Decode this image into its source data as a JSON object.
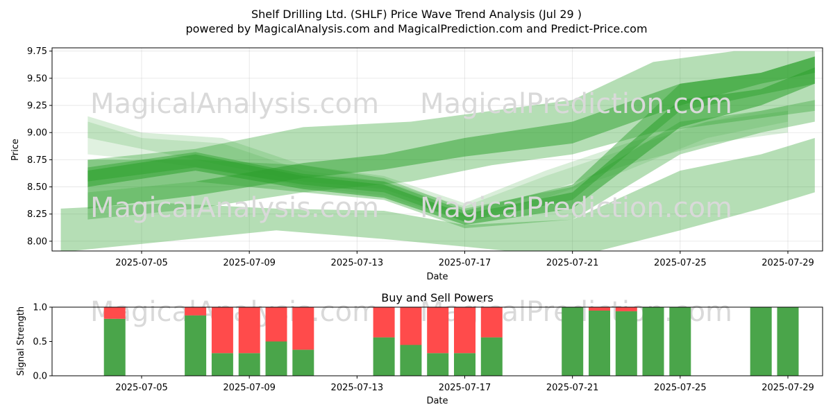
{
  "title_line1": "Shelf Drilling Ltd. (SHLF) Price Wave Trend Analysis (Jul 29 )",
  "title_line2": "powered by MagicalAnalysis.com and MagicalPrediction.com and Predict-Price.com",
  "watermarks": [
    "MagicalAnalysis.com",
    "MagicalPrediction.com"
  ],
  "colors": {
    "band": "#2ca02c",
    "buy": "#4aa54a",
    "sell": "#ff4b4b"
  },
  "chart_data": [
    {
      "type": "area",
      "xlabel": "Date",
      "ylabel": "Price",
      "ylim": [
        7.91,
        9.78
      ],
      "yticks": [
        "8.00",
        "8.25",
        "8.50",
        "8.75",
        "9.00",
        "9.25",
        "9.50",
        "9.75"
      ],
      "xticks": [
        "2025-07-05",
        "2025-07-09",
        "2025-07-13",
        "2025-07-17",
        "2025-07-21",
        "2025-07-25",
        "2025-07-29"
      ],
      "grid": true,
      "series": [
        {
          "x": [
            "2025-07-03",
            "2025-07-07",
            "2025-07-11",
            "2025-07-14",
            "2025-07-17",
            "2025-07-21",
            "2025-07-25",
            "2025-07-28",
            "2025-07-30"
          ],
          "lower": [
            8.45,
            8.55,
            8.45,
            8.38,
            8.12,
            8.2,
            8.8,
            9.0,
            9.1
          ],
          "upper": [
            8.75,
            8.75,
            8.7,
            8.58,
            8.3,
            8.5,
            9.1,
            9.2,
            9.3
          ],
          "opacity": 0.35
        },
        {
          "x": [
            "2025-07-03",
            "2025-07-07",
            "2025-07-11",
            "2025-07-14",
            "2025-07-17",
            "2025-07-21",
            "2025-07-25",
            "2025-07-28",
            "2025-07-30"
          ],
          "lower": [
            8.5,
            8.65,
            8.48,
            8.4,
            8.15,
            8.3,
            9.05,
            9.25,
            9.45
          ],
          "upper": [
            8.65,
            8.8,
            8.6,
            8.52,
            8.25,
            8.45,
            9.3,
            9.4,
            9.6
          ],
          "opacity": 0.55
        },
        {
          "x": [
            "2025-07-03",
            "2025-07-07",
            "2025-07-11",
            "2025-07-14",
            "2025-07-17",
            "2025-07-21",
            "2025-07-25",
            "2025-07-28",
            "2025-07-30"
          ],
          "lower": [
            8.55,
            8.68,
            8.52,
            8.45,
            8.18,
            8.38,
            9.2,
            9.35,
            9.45
          ],
          "upper": [
            8.68,
            8.82,
            8.62,
            8.55,
            8.28,
            8.52,
            9.45,
            9.55,
            9.7
          ],
          "opacity": 0.45
        },
        {
          "x": [
            "2025-07-03",
            "2025-07-07",
            "2025-07-11",
            "2025-07-14",
            "2025-07-17",
            "2025-07-21",
            "2025-07-25",
            "2025-07-28",
            "2025-07-30"
          ],
          "lower": [
            8.3,
            8.42,
            8.58,
            8.66,
            8.78,
            8.9,
            9.25,
            9.45,
            9.55
          ],
          "upper": [
            8.45,
            8.55,
            8.72,
            8.8,
            8.95,
            9.1,
            9.45,
            9.55,
            9.7
          ],
          "opacity": 0.5
        },
        {
          "x": [
            "2025-07-03",
            "2025-07-07",
            "2025-07-11",
            "2025-07-15",
            "2025-07-18",
            "2025-07-21",
            "2025-07-24",
            "2025-07-27",
            "2025-07-30"
          ],
          "lower": [
            8.2,
            8.3,
            8.45,
            8.55,
            8.7,
            8.8,
            9.0,
            9.1,
            9.2
          ],
          "upper": [
            8.75,
            8.85,
            9.05,
            9.1,
            9.2,
            9.3,
            9.65,
            9.75,
            9.75
          ],
          "opacity": 0.35
        },
        {
          "x": [
            "2025-07-02",
            "2025-07-06",
            "2025-07-10",
            "2025-07-14",
            "2025-07-17",
            "2025-07-21",
            "2025-07-25",
            "2025-07-28",
            "2025-07-30"
          ],
          "lower": [
            7.9,
            8.0,
            8.1,
            8.02,
            7.95,
            7.85,
            8.1,
            8.3,
            8.45
          ],
          "upper": [
            8.3,
            8.35,
            8.3,
            8.28,
            8.15,
            8.2,
            8.65,
            8.8,
            8.95
          ],
          "opacity": 0.35
        },
        {
          "x": [
            "2025-07-03",
            "2025-07-05",
            "2025-07-08",
            "2025-07-11",
            "2025-07-14",
            "2025-07-17",
            "2025-07-20",
            "2025-07-23",
            "2025-07-26",
            "2025-07-29"
          ],
          "lower": [
            8.95,
            8.85,
            8.7,
            8.55,
            8.48,
            8.22,
            8.45,
            8.7,
            8.9,
            9.0
          ],
          "upper": [
            9.15,
            9.0,
            8.95,
            8.7,
            8.6,
            8.35,
            8.65,
            8.9,
            9.1,
            9.2
          ],
          "opacity": 0.18
        },
        {
          "x": [
            "2025-07-03",
            "2025-07-05",
            "2025-07-08",
            "2025-07-11",
            "2025-07-14",
            "2025-07-17",
            "2025-07-20",
            "2025-07-23",
            "2025-07-26",
            "2025-07-29"
          ],
          "lower": [
            8.8,
            8.75,
            8.65,
            8.5,
            8.42,
            8.18,
            8.4,
            8.65,
            8.95,
            9.1
          ],
          "upper": [
            9.1,
            8.95,
            8.9,
            8.65,
            8.55,
            8.32,
            8.6,
            8.85,
            9.1,
            9.25
          ],
          "opacity": 0.15
        }
      ]
    },
    {
      "type": "bar",
      "title": "Buy and Sell Powers",
      "xlabel": "Date",
      "ylabel": "Signal Strength",
      "ylim": [
        0,
        1.0
      ],
      "yticks": [
        "0.0",
        "0.5",
        "1.0"
      ],
      "xticks": [
        "2025-07-05",
        "2025-07-09",
        "2025-07-13",
        "2025-07-17",
        "2025-07-21",
        "2025-07-25",
        "2025-07-29"
      ],
      "categories": [
        "2025-07-04",
        "2025-07-07",
        "2025-07-08",
        "2025-07-09",
        "2025-07-10",
        "2025-07-11",
        "2025-07-14",
        "2025-07-15",
        "2025-07-16",
        "2025-07-17",
        "2025-07-18",
        "2025-07-21",
        "2025-07-22",
        "2025-07-23",
        "2025-07-24",
        "2025-07-25",
        "2025-07-28",
        "2025-07-29"
      ],
      "series": [
        {
          "name": "buy",
          "values": [
            0.83,
            0.88,
            0.33,
            0.33,
            0.5,
            0.38,
            0.56,
            0.45,
            0.33,
            0.33,
            0.56,
            1.0,
            0.95,
            0.94,
            1.0,
            1.0,
            1.0,
            1.0
          ]
        },
        {
          "name": "sell",
          "values": [
            0.17,
            0.12,
            0.67,
            0.67,
            0.5,
            0.62,
            0.44,
            0.55,
            0.67,
            0.67,
            0.44,
            0.0,
            0.05,
            0.06,
            0.0,
            0.0,
            0.0,
            0.0
          ]
        }
      ]
    }
  ]
}
